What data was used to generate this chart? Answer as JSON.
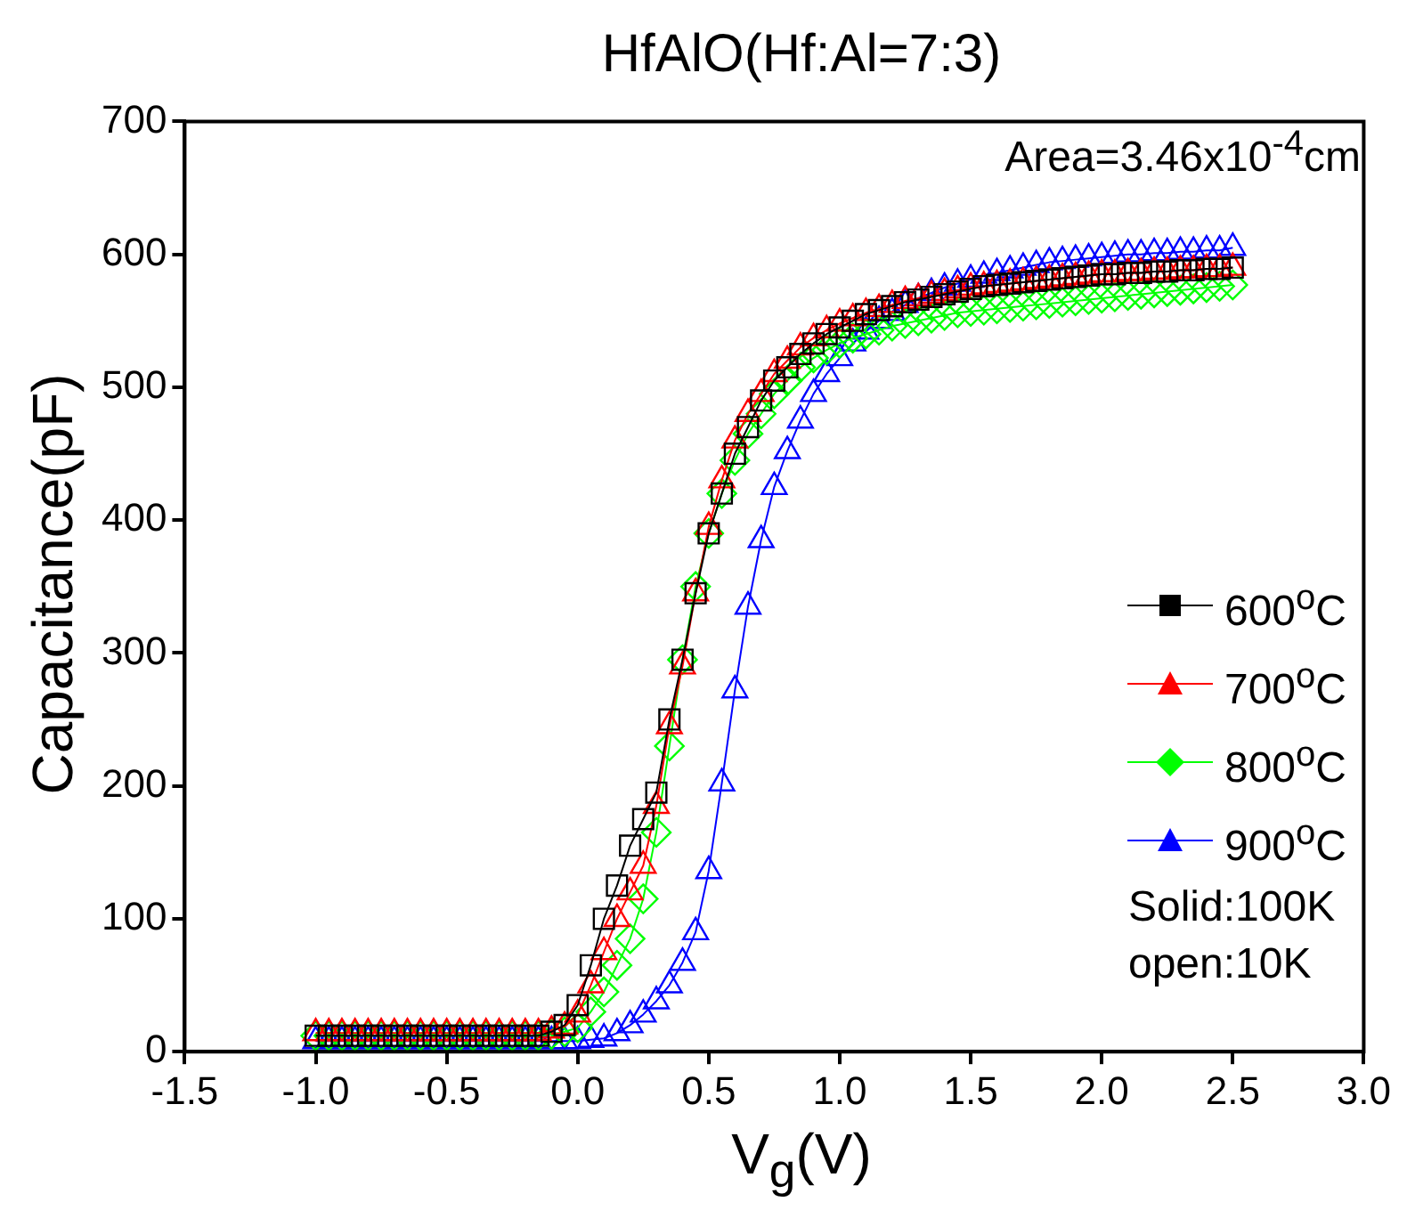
{
  "chart_data": {
    "type": "line",
    "title": "HfAlO(Hf:Al=7:3)",
    "xlabel": "V$_{g}$(V)",
    "ylabel": "Capacitance(pF)",
    "annotations": [
      "Area=3.46x10$^{-4}$cm",
      "Solid:100K",
      "open:10K"
    ],
    "x": [
      -1,
      -0.95,
      -0.9,
      -0.85,
      -0.8,
      -0.75,
      -0.7,
      -0.65,
      -0.6,
      -0.55,
      -0.5,
      -0.45,
      -0.4,
      -0.35,
      -0.3,
      -0.25,
      -0.2,
      -0.15,
      -0.1,
      -0.05,
      0,
      0.05,
      0.1,
      0.15,
      0.2,
      0.25,
      0.3,
      0.35,
      0.4,
      0.45,
      0.5,
      0.55,
      0.6,
      0.65,
      0.7,
      0.75,
      0.8,
      0.85,
      0.9,
      0.95,
      1,
      1.05,
      1.1,
      1.15,
      1.2,
      1.25,
      1.3,
      1.35,
      1.4,
      1.45,
      1.5,
      1.55,
      1.6,
      1.65,
      1.7,
      1.75,
      1.8,
      1.85,
      1.9,
      1.95,
      2,
      2.05,
      2.1,
      2.15,
      2.2,
      2.25,
      2.3,
      2.35,
      2.4,
      2.45,
      2.5
    ],
    "series": [
      {
        "name": "600$^{o}$C",
        "color": "#000000",
        "marker": "square",
        "values": [
          12,
          12,
          12,
          12,
          12,
          12,
          12,
          12,
          12,
          12,
          12,
          12,
          12,
          12,
          12,
          12,
          12,
          12,
          15,
          20,
          35,
          65,
          100,
          125,
          155,
          175,
          195,
          250,
          295,
          345,
          390,
          420,
          450,
          470,
          490,
          505,
          515,
          525,
          533,
          540,
          545,
          550,
          555,
          558,
          561,
          564,
          566,
          568,
          570,
          572,
          574,
          576,
          577,
          578,
          579,
          580,
          581,
          582,
          583,
          584,
          585,
          585,
          586,
          586,
          587,
          587,
          588,
          588,
          589,
          589,
          590
        ]
      },
      {
        "name": "700$^{o}$C",
        "color": "#ff0000",
        "marker": "triangle",
        "values": [
          14,
          14,
          14,
          14,
          14,
          14,
          14,
          14,
          14,
          14,
          14,
          14,
          14,
          14,
          14,
          14,
          14,
          14,
          16,
          19,
          28,
          50,
          75,
          100,
          120,
          140,
          185,
          245,
          290,
          345,
          395,
          430,
          460,
          480,
          495,
          510,
          520,
          530,
          537,
          543,
          548,
          552,
          556,
          559,
          562,
          565,
          567,
          569,
          571,
          573,
          575,
          576,
          577,
          578,
          579,
          580,
          581,
          582,
          583,
          584,
          585,
          585,
          586,
          586,
          587,
          587,
          588,
          588,
          589,
          589,
          590
        ]
      },
      {
        "name": "800$^{o}$C",
        "color": "#00ff00",
        "marker": "diamond",
        "values": [
          12,
          12,
          12,
          12,
          12,
          12,
          12,
          12,
          12,
          12,
          12,
          12,
          12,
          12,
          12,
          12,
          12,
          12,
          13,
          15,
          18,
          30,
          45,
          65,
          85,
          115,
          165,
          230,
          295,
          350,
          390,
          420,
          445,
          465,
          480,
          495,
          505,
          515,
          522,
          528,
          533,
          537,
          540,
          543,
          546,
          548,
          550,
          552,
          554,
          556,
          557,
          558,
          559,
          560,
          561,
          562,
          563,
          564,
          565,
          566,
          567,
          568,
          569,
          570,
          571,
          572,
          573,
          574,
          575,
          576,
          577
        ]
      },
      {
        "name": "900$^{o}$C",
        "color": "#0000ff",
        "marker": "triangle",
        "values": [
          8,
          8,
          8,
          8,
          8,
          8,
          8,
          8,
          8,
          8,
          8,
          8,
          8,
          8,
          8,
          8,
          8,
          8,
          8,
          8,
          8,
          9,
          10,
          14,
          20,
          28,
          38,
          50,
          67,
          90,
          136,
          202,
          272,
          335,
          385,
          425,
          452,
          475,
          495,
          510,
          522,
          533,
          542,
          550,
          556,
          562,
          567,
          571,
          575,
          578,
          581,
          584,
          586,
          588,
          590,
          592,
          594,
          595,
          596,
          597,
          598,
          599,
          600,
          600,
          601,
          601,
          602,
          602,
          603,
          603,
          605
        ]
      }
    ],
    "xlim": [
      -1.5,
      3.0
    ],
    "xticks": [
      {
        "value": -1.5,
        "label": "-1.5"
      },
      {
        "value": -1,
        "label": "-1.0"
      },
      {
        "value": -0.5,
        "label": "-0.5"
      },
      {
        "value": 0,
        "label": "0.0"
      },
      {
        "value": 0.5,
        "label": "0.5"
      },
      {
        "value": 1,
        "label": "1.0"
      },
      {
        "value": 1.5,
        "label": "1.5"
      },
      {
        "value": 2,
        "label": "2.0"
      },
      {
        "value": 2.5,
        "label": "2.5"
      },
      {
        "value": 3,
        "label": "3.0"
      }
    ],
    "ylim": [
      0,
      700
    ],
    "yticks": [
      0,
      100,
      200,
      300,
      400,
      500,
      600,
      700
    ],
    "grid": false,
    "legend": "right",
    "line_style": "solid"
  }
}
